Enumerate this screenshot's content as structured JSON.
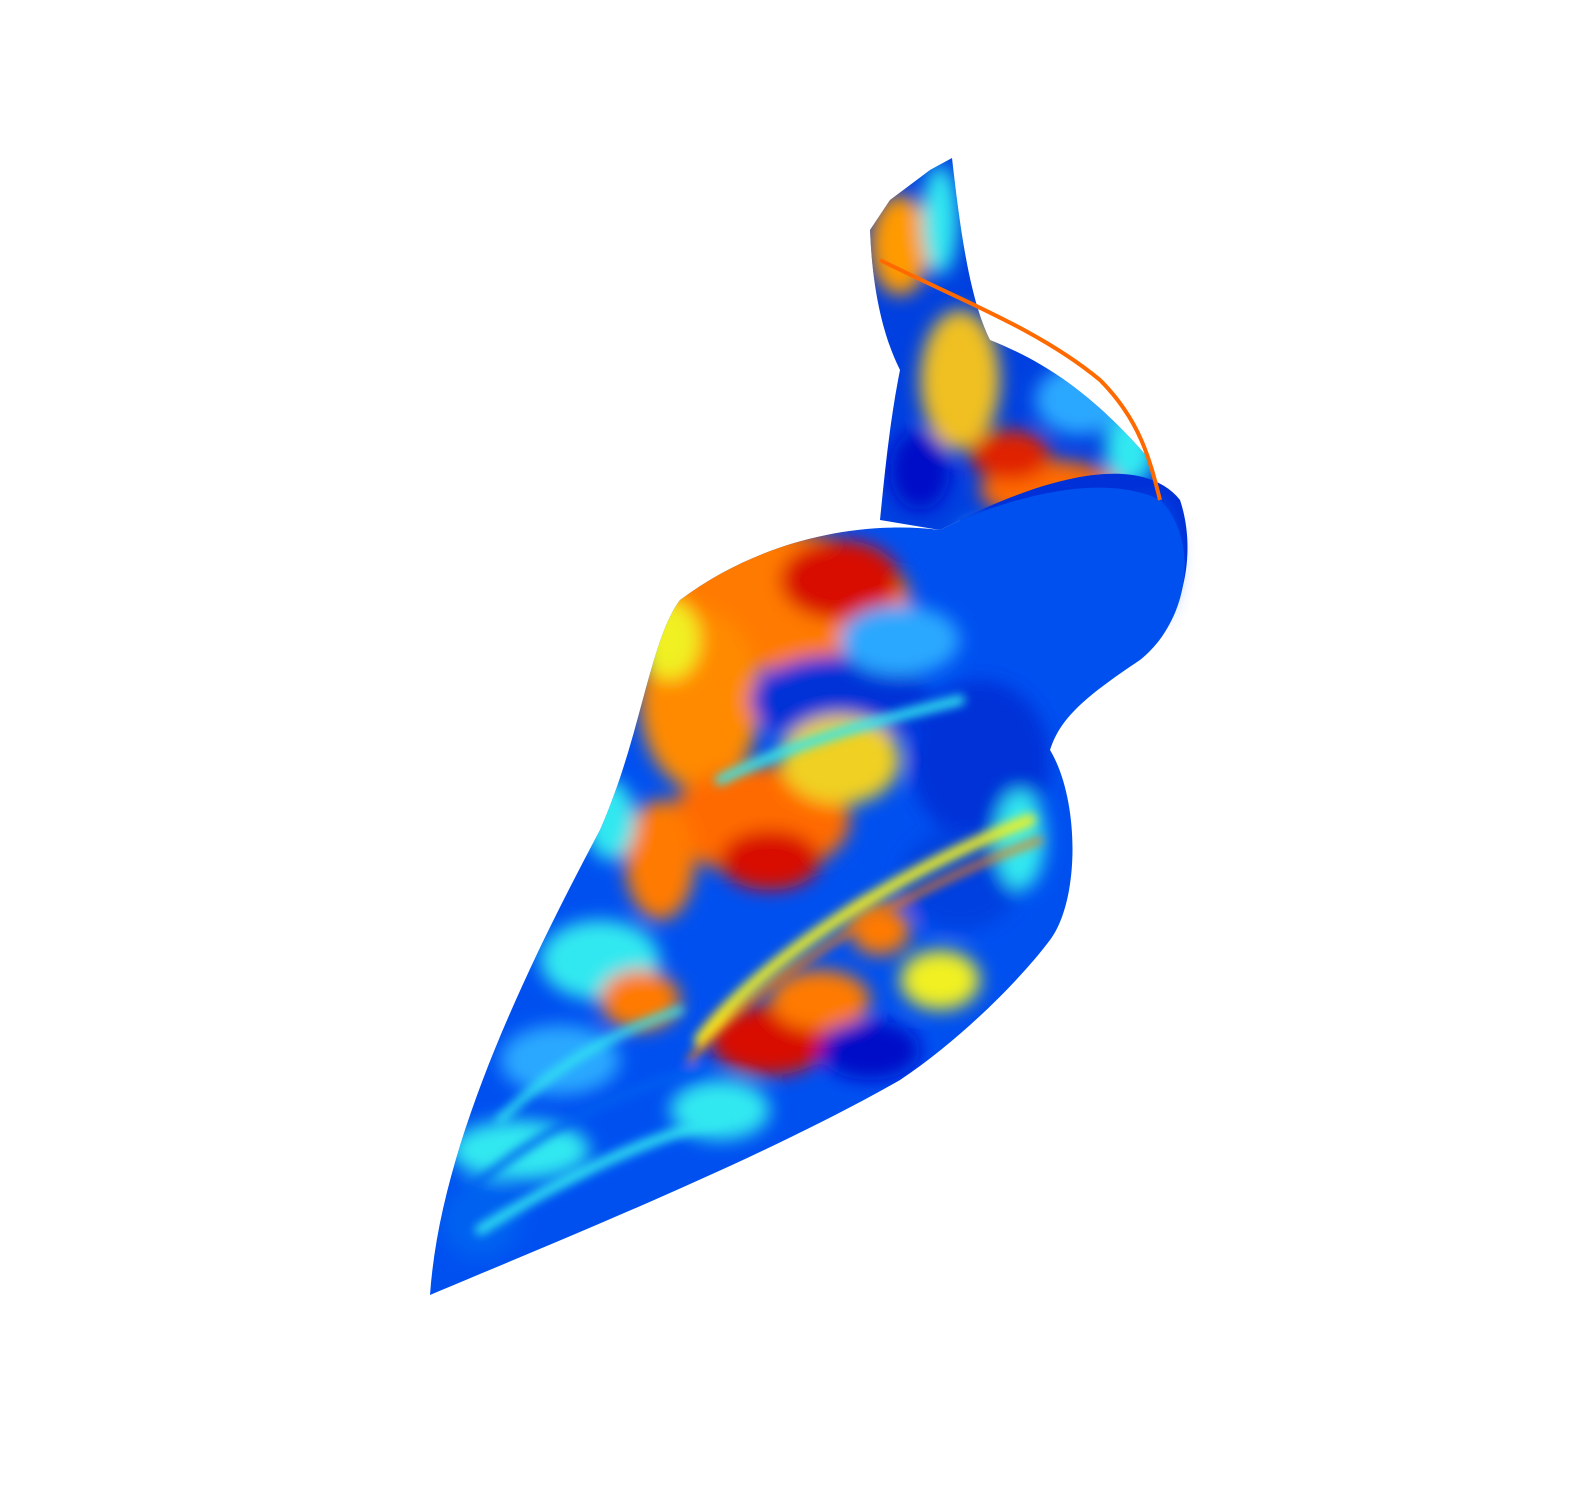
{
  "figure": {
    "description_type": "3d-surface-render",
    "colormap": "jet",
    "colors": {
      "background": "#ffffff",
      "deep_blue": "#0010c8",
      "blue": "#0050f0",
      "light_blue": "#2aa8ff",
      "cyan": "#30e8f0",
      "yellow": "#f0f020",
      "orange": "#ff7a00",
      "red": "#d81000",
      "dark_red": "#a00000"
    }
  }
}
